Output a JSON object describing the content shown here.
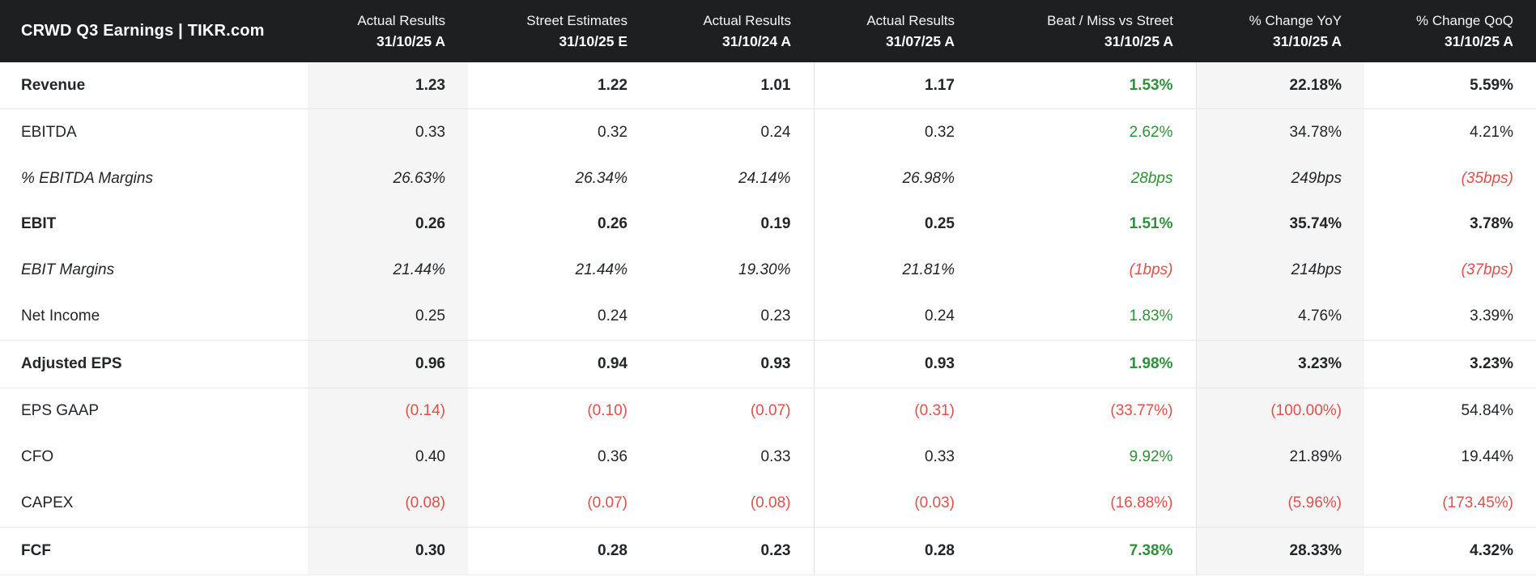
{
  "title": "CRWD Q3 Earnings | TIKR.com",
  "colors": {
    "header_bg": "#1e1f21",
    "positive_green": "#2f8f3a",
    "negative_red": "#e0504b",
    "shaded_column_bg": "#f5f5f6",
    "body_text": "#232528"
  },
  "columns": [
    {
      "line1": "Actual Results",
      "line2": "31/10/25 A"
    },
    {
      "line1": "Street Estimates",
      "line2": "31/10/25 E"
    },
    {
      "line1": "Actual Results",
      "line2": "31/10/24 A"
    },
    {
      "line1": "Actual Results",
      "line2": "31/07/25 A"
    },
    {
      "line1": "Beat / Miss vs Street",
      "line2": "31/10/25 A"
    },
    {
      "line1": "% Change YoY",
      "line2": "31/10/25 A"
    },
    {
      "line1": "% Change QoQ",
      "line2": "31/10/25 A"
    }
  ],
  "rows": [
    {
      "label": "Revenue",
      "values": [
        "1.23",
        "1.22",
        "1.01",
        "1.17",
        "1.53%",
        "22.18%",
        "5.59%"
      ]
    },
    {
      "label": "EBITDA",
      "values": [
        "0.33",
        "0.32",
        "0.24",
        "0.32",
        "2.62%",
        "34.78%",
        "4.21%"
      ]
    },
    {
      "label": "% EBITDA Margins",
      "values": [
        "26.63%",
        "26.34%",
        "24.14%",
        "26.98%",
        "28bps",
        "249bps",
        "(35bps)"
      ]
    },
    {
      "label": "EBIT",
      "values": [
        "0.26",
        "0.26",
        "0.19",
        "0.25",
        "1.51%",
        "35.74%",
        "3.78%"
      ]
    },
    {
      "label": "EBIT Margins",
      "values": [
        "21.44%",
        "21.44%",
        "19.30%",
        "21.81%",
        "(1bps)",
        "214bps",
        "(37bps)"
      ]
    },
    {
      "label": "Net Income",
      "values": [
        "0.25",
        "0.24",
        "0.23",
        "0.24",
        "1.83%",
        "4.76%",
        "3.39%"
      ]
    },
    {
      "label": "Adjusted EPS",
      "values": [
        "0.96",
        "0.94",
        "0.93",
        "0.93",
        "1.98%",
        "3.23%",
        "3.23%"
      ]
    },
    {
      "label": "EPS GAAP",
      "values": [
        "(0.14)",
        "(0.10)",
        "(0.07)",
        "(0.31)",
        "(33.77%)",
        "(100.00%)",
        "54.84%"
      ]
    },
    {
      "label": "CFO",
      "values": [
        "0.40",
        "0.36",
        "0.33",
        "0.33",
        "9.92%",
        "21.89%",
        "19.44%"
      ]
    },
    {
      "label": "CAPEX",
      "values": [
        "(0.08)",
        "(0.07)",
        "(0.08)",
        "(0.03)",
        "(16.88%)",
        "(5.96%)",
        "(173.45%)"
      ]
    },
    {
      "label": "FCF",
      "values": [
        "0.30",
        "0.28",
        "0.23",
        "0.28",
        "7.38%",
        "28.33%",
        "4.32%"
      ]
    }
  ]
}
